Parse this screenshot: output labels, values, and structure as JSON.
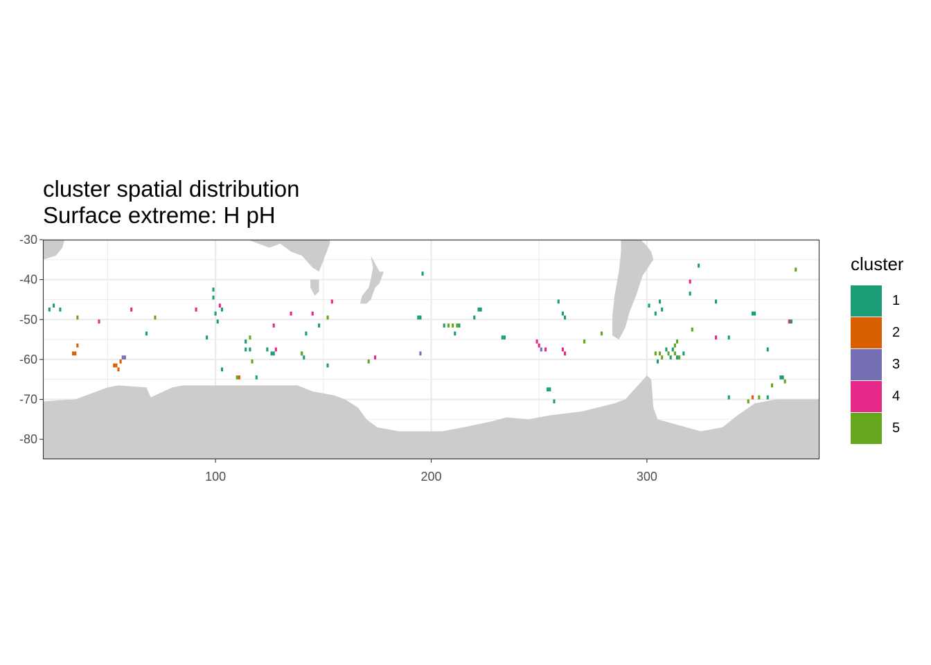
{
  "title": "cluster spatial distribution",
  "subtitle": "Surface extreme: H pH",
  "legend": {
    "title": "cluster",
    "entries": [
      {
        "label": "1",
        "color": "#1B9E77"
      },
      {
        "label": "2",
        "color": "#D95F02"
      },
      {
        "label": "3",
        "color": "#7570B3"
      },
      {
        "label": "4",
        "color": "#E7298A"
      },
      {
        "label": "5",
        "color": "#66A61E"
      }
    ]
  },
  "colors": {
    "land": "#CCCCCC",
    "grid": "#EBEBEB",
    "panel_border": "#333333"
  },
  "chart_data": {
    "type": "heatmap",
    "title": "cluster spatial distribution",
    "subtitle": "Surface extreme: H pH",
    "xlabel": "",
    "ylabel": "",
    "xlim": [
      20,
      380
    ],
    "ylim": [
      -85,
      -30
    ],
    "x_ticks": [
      100,
      200,
      300
    ],
    "y_ticks": [
      -30,
      -40,
      -50,
      -60,
      -70,
      -80
    ],
    "x_tick_labels": [
      "100",
      "200",
      "300"
    ],
    "y_tick_labels": [
      "-30",
      "-40",
      "-50",
      "-60",
      "-70",
      "-80"
    ],
    "grid": true,
    "legend_position": "right",
    "cell_size": [
      1,
      1
    ],
    "land_mask": {
      "antarctica_edge": [
        [
          20,
          -70.5
        ],
        [
          35,
          -70
        ],
        [
          50,
          -67
        ],
        [
          55,
          -66.5
        ],
        [
          68,
          -67
        ],
        [
          70,
          -69.5
        ],
        [
          80,
          -67
        ],
        [
          85,
          -66.5
        ],
        [
          98,
          -66.5
        ],
        [
          120,
          -66.5
        ],
        [
          138,
          -66.5
        ],
        [
          145,
          -68
        ],
        [
          155,
          -69
        ],
        [
          160,
          -70
        ],
        [
          166,
          -72
        ],
        [
          170,
          -75
        ],
        [
          175,
          -77
        ],
        [
          185,
          -78
        ],
        [
          205,
          -78
        ],
        [
          215,
          -77
        ],
        [
          228,
          -75.5
        ],
        [
          235,
          -74.5
        ],
        [
          245,
          -75
        ],
        [
          255,
          -74
        ],
        [
          270,
          -73
        ],
        [
          285,
          -71
        ],
        [
          290,
          -70
        ],
        [
          295,
          -67
        ],
        [
          300,
          -64
        ],
        [
          302,
          -65
        ],
        [
          303,
          -72
        ],
        [
          305,
          -75
        ],
        [
          325,
          -78
        ],
        [
          335,
          -77
        ],
        [
          342,
          -74
        ],
        [
          350,
          -71
        ],
        [
          360,
          -70
        ],
        [
          365,
          -70
        ],
        [
          380,
          -70
        ]
      ],
      "south_america": [
        [
          288,
          -30
        ],
        [
          297,
          -30
        ],
        [
          299,
          -31
        ],
        [
          302,
          -33
        ],
        [
          303,
          -35
        ],
        [
          298,
          -39
        ],
        [
          295,
          -44
        ],
        [
          292,
          -48
        ],
        [
          290,
          -52
        ],
        [
          287,
          -55
        ],
        [
          284,
          -54
        ],
        [
          284,
          -49
        ],
        [
          285,
          -44
        ],
        [
          287,
          -38
        ],
        [
          288,
          -33
        ]
      ],
      "australia": [
        [
          115,
          -30
        ],
        [
          120,
          -31
        ],
        [
          125,
          -32
        ],
        [
          130,
          -31
        ],
        [
          135,
          -33
        ],
        [
          140,
          -34
        ],
        [
          145,
          -37
        ],
        [
          148,
          -38
        ],
        [
          153,
          -31
        ],
        [
          153,
          -30
        ]
      ],
      "tasmania": [
        [
          144,
          -40
        ],
        [
          148,
          -40
        ],
        [
          148,
          -43
        ],
        [
          146,
          -44
        ],
        [
          144,
          -42
        ]
      ],
      "new_zealand": [
        [
          172,
          -34
        ],
        [
          174,
          -36
        ],
        [
          176,
          -38
        ],
        [
          178,
          -38
        ],
        [
          176,
          -41
        ],
        [
          174,
          -42
        ],
        [
          172,
          -45
        ],
        [
          170,
          -46
        ],
        [
          167,
          -46
        ],
        [
          168,
          -44
        ],
        [
          171,
          -42
        ],
        [
          172,
          -40
        ],
        [
          173,
          -37
        ]
      ],
      "africa": [
        [
          20,
          -30
        ],
        [
          30,
          -30
        ],
        [
          29,
          -32
        ],
        [
          26,
          -34
        ],
        [
          20,
          -35
        ]
      ]
    },
    "series": [
      {
        "name": "1",
        "color": "#1B9E77",
        "points": [
          [
            23,
            -47.5
          ],
          [
            25,
            -46.5
          ],
          [
            28,
            -47.5
          ],
          [
            68,
            -53.5
          ],
          [
            96,
            -54.5
          ],
          [
            99,
            -42.5
          ],
          [
            99,
            -44.5
          ],
          [
            100,
            -48.5
          ],
          [
            101,
            -50.5
          ],
          [
            103,
            -47.5
          ],
          [
            103,
            -62.5
          ],
          [
            114,
            -55.5
          ],
          [
            114,
            -57.5
          ],
          [
            116,
            -57.5
          ],
          [
            119,
            -64.5
          ],
          [
            124,
            -57.5
          ],
          [
            126,
            -58.5
          ],
          [
            127,
            -58.5
          ],
          [
            140,
            -58.5
          ],
          [
            141,
            -59.5
          ],
          [
            142,
            -53.5
          ],
          [
            148,
            -51.5
          ],
          [
            152,
            -61.5
          ],
          [
            194,
            -49.5
          ],
          [
            195,
            -49.5
          ],
          [
            196,
            -38.5
          ],
          [
            206,
            -51.5
          ],
          [
            211,
            -53.5
          ],
          [
            213,
            -51.5
          ],
          [
            220,
            -49.5
          ],
          [
            222,
            -47.5
          ],
          [
            223,
            -47.5
          ],
          [
            233,
            -54.5
          ],
          [
            234,
            -54.5
          ],
          [
            254,
            -67.5
          ],
          [
            255,
            -67.5
          ],
          [
            257,
            -70.5
          ],
          [
            259,
            -45.5
          ],
          [
            261,
            -48.5
          ],
          [
            262,
            -49.5
          ],
          [
            301,
            -46.5
          ],
          [
            304,
            -48.5
          ],
          [
            305,
            -60.5
          ],
          [
            306,
            -45.5
          ],
          [
            307,
            -47.5
          ],
          [
            309,
            -57.5
          ],
          [
            311,
            -59.5
          ],
          [
            312,
            -57.5
          ],
          [
            314,
            -59.5
          ],
          [
            317,
            -58.5
          ],
          [
            320,
            -43.5
          ],
          [
            324,
            -36.5
          ],
          [
            332,
            -45.5
          ],
          [
            338,
            -54.5
          ],
          [
            338,
            -69.5
          ],
          [
            349,
            -48.5
          ],
          [
            350,
            -48.5
          ],
          [
            356,
            -69.5
          ],
          [
            362,
            -64.5
          ],
          [
            363,
            -64.5
          ],
          [
            356,
            -57.5
          ],
          [
            366,
            -50.5
          ],
          [
            367,
            -50.5
          ]
        ]
      },
      {
        "name": "2",
        "color": "#D95F02",
        "points": [
          [
            34,
            -58.5
          ],
          [
            35,
            -58.5
          ],
          [
            36,
            -56.5
          ],
          [
            53,
            -61.5
          ],
          [
            54,
            -61.5
          ],
          [
            55,
            -62.5
          ],
          [
            56,
            -60.5
          ],
          [
            111,
            -64.5
          ],
          [
            349,
            -69.5
          ]
        ]
      },
      {
        "name": "3",
        "color": "#7570B3",
        "points": [
          [
            57,
            -59.5
          ],
          [
            58,
            -59.5
          ],
          [
            195,
            -58.5
          ],
          [
            251,
            -57.5
          ]
        ]
      },
      {
        "name": "4",
        "color": "#E7298A",
        "points": [
          [
            46,
            -50.5
          ],
          [
            61,
            -47.5
          ],
          [
            91,
            -47.5
          ],
          [
            102,
            -46.5
          ],
          [
            127,
            -51.5
          ],
          [
            128,
            -57.5
          ],
          [
            135,
            -48.5
          ],
          [
            145,
            -48.5
          ],
          [
            154,
            -45.5
          ],
          [
            174,
            -59.5
          ],
          [
            249,
            -55.5
          ],
          [
            250,
            -56.5
          ],
          [
            253,
            -57.5
          ],
          [
            261,
            -57.5
          ],
          [
            262,
            -58.5
          ],
          [
            320,
            -40.5
          ],
          [
            332,
            -54.5
          ],
          [
            366,
            -50.5
          ]
        ]
      },
      {
        "name": "5",
        "color": "#66A61E",
        "points": [
          [
            36,
            -49.5
          ],
          [
            72,
            -49.5
          ],
          [
            110,
            -64.5
          ],
          [
            116,
            -54.5
          ],
          [
            117,
            -60.5
          ],
          [
            140,
            -58.5
          ],
          [
            152,
            -49.5
          ],
          [
            171,
            -60.5
          ],
          [
            208,
            -51.5
          ],
          [
            210,
            -51.5
          ],
          [
            212,
            -51.5
          ],
          [
            271,
            -55.5
          ],
          [
            279,
            -53.5
          ],
          [
            304,
            -58.5
          ],
          [
            306,
            -58.5
          ],
          [
            307,
            -59.5
          ],
          [
            310,
            -58.5
          ],
          [
            313,
            -56.5
          ],
          [
            313,
            -58.5
          ],
          [
            314,
            -55.5
          ],
          [
            315,
            -59.5
          ],
          [
            321,
            -52.5
          ],
          [
            347,
            -70.5
          ],
          [
            352,
            -69.5
          ],
          [
            358,
            -66.5
          ],
          [
            364,
            -65.5
          ],
          [
            369,
            -37.5
          ]
        ]
      }
    ]
  }
}
